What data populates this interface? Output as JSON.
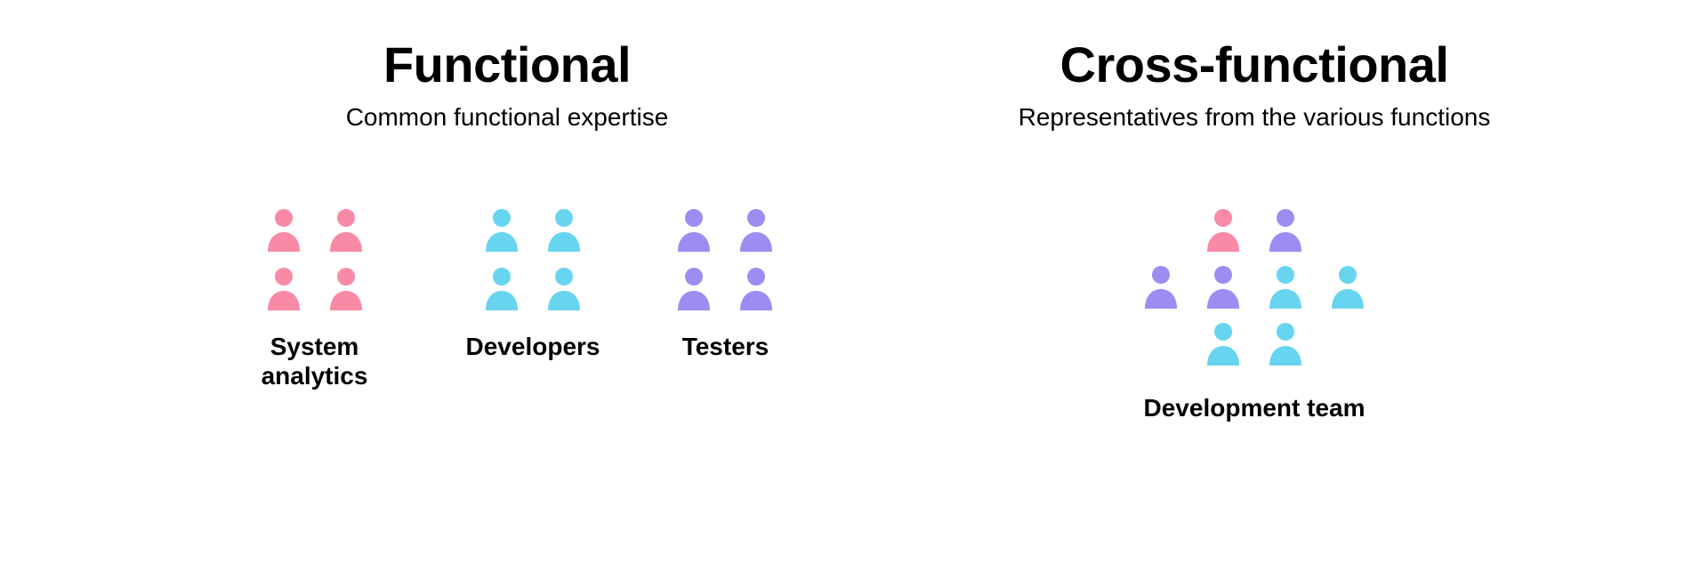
{
  "type": "infographic",
  "background_color": "#ffffff",
  "text_color": "#000000",
  "title_fontsize": 56,
  "subtitle_fontsize": 28,
  "label_fontsize": 28,
  "colors": {
    "pink": "#f88aa6",
    "cyan": "#67d5f0",
    "purple": "#9d8cf2"
  },
  "icon": {
    "width": 52,
    "height": 52
  },
  "left": {
    "title": "Functional",
    "subtitle": "Common functional expertise",
    "groups": [
      {
        "label": "System analytics",
        "color": "#f88aa6",
        "count": 4
      },
      {
        "label": "Developers",
        "color": "#67d5f0",
        "count": 4
      },
      {
        "label": "Testers",
        "color": "#9d8cf2",
        "count": 4
      }
    ]
  },
  "right": {
    "title": "Cross-functional",
    "subtitle": "Representatives from the various functions",
    "cluster": {
      "label": "Development team",
      "rows": [
        [
          "#f88aa6",
          "#9d8cf2"
        ],
        [
          "#9d8cf2",
          "#9d8cf2",
          "#67d5f0",
          "#67d5f0"
        ],
        [
          "#67d5f0",
          "#67d5f0"
        ]
      ]
    }
  }
}
